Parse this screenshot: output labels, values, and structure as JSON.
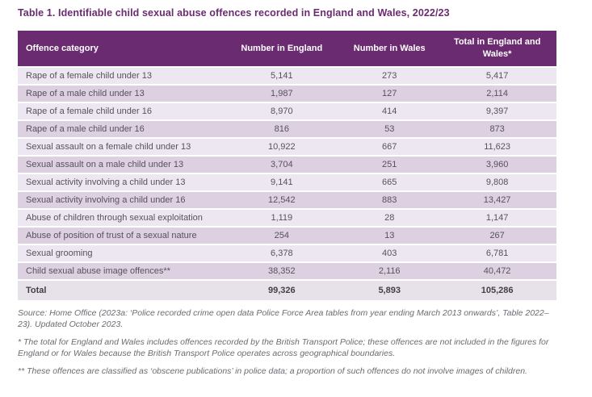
{
  "title": "Table 1. Identifiable child sexual abuse offences recorded in England and Wales, 2022/23",
  "table": {
    "columns": [
      "Offence category",
      "Number in England",
      "Number in Wales",
      "Total in England and Wales*"
    ],
    "rows": [
      {
        "category": "Rape of a female child under 13",
        "england": "5,141",
        "wales": "273",
        "total": "5,417"
      },
      {
        "category": "Rape of a male child under 13",
        "england": "1,987",
        "wales": "127",
        "total": "2,114"
      },
      {
        "category": "Rape of a female child under 16",
        "england": "8,970",
        "wales": "414",
        "total": "9,397"
      },
      {
        "category": "Rape of a male child under 16",
        "england": "816",
        "wales": "53",
        "total": "873"
      },
      {
        "category": "Sexual assault on a female child under 13",
        "england": "10,922",
        "wales": "667",
        "total": "11,623"
      },
      {
        "category": "Sexual assault on a male child under 13",
        "england": "3,704",
        "wales": "251",
        "total": "3,960"
      },
      {
        "category": "Sexual activity involving a child under 13",
        "england": "9,141",
        "wales": "665",
        "total": "9,808"
      },
      {
        "category": "Sexual activity involving a child under 16",
        "england": "12,542",
        "wales": "883",
        "total": "13,427"
      },
      {
        "category": "Abuse of children through sexual exploitation",
        "england": "1,119",
        "wales": "28",
        "total": "1,147"
      },
      {
        "category": "Abuse of position of trust of a sexual nature",
        "england": "254",
        "wales": "13",
        "total": "267"
      },
      {
        "category": "Sexual grooming",
        "england": "6,378",
        "wales": "403",
        "total": "6,781"
      },
      {
        "category": "Child sexual abuse image offences**",
        "england": "38,352",
        "wales": "2,116",
        "total": "40,472"
      }
    ],
    "total_row": {
      "category": "Total",
      "england": "99,326",
      "wales": "5,893",
      "total": "105,286"
    }
  },
  "footnotes": [
    "Source: Home Office (2023a: ‘Police recorded crime open data Police Force Area tables from year ending March 2013 onwards’, Table 2022–23). Updated October 2023.",
    "* The total for England and Wales includes offences recorded by the British Transport Police; these offences are not included in the figures for England or for Wales because the British Transport Police operates across geographical boundaries.",
    "** These offences are classified as ‘obscene publications’ in police data; a proportion of such offences do not involve images of children."
  ],
  "colors": {
    "title_color": "#6B2B71",
    "header_bg": "#6B2B71",
    "header_text": "#FFFFFF",
    "row_light": "#EDE7F1",
    "row_dark": "#DCD0E1",
    "row_total_bg": "#E7E1EA",
    "body_text": "#57525B",
    "total_text": "#433E47",
    "footnote_text": "#6E6A72"
  }
}
